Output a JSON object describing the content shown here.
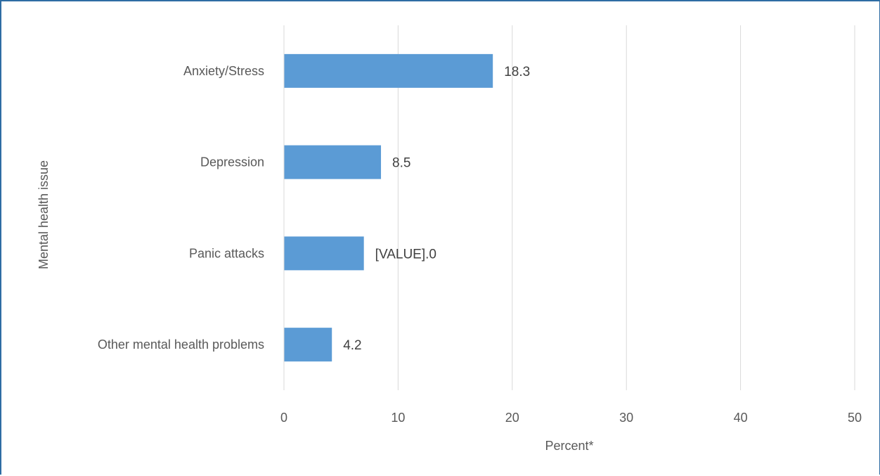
{
  "chart_data": {
    "type": "bar",
    "orientation": "horizontal",
    "categories": [
      "Anxiety/Stress",
      "Depression",
      "Panic attacks",
      "Other mental health problems"
    ],
    "values": [
      18.3,
      8.5,
      7.0,
      4.2
    ],
    "data_labels": [
      "18.3",
      "8.5",
      "[VALUE].0",
      "4.2"
    ],
    "xlabel": "Percent*",
    "ylabel": "Mental health issue",
    "xlim": [
      0,
      50
    ],
    "xticks": [
      "0",
      "10",
      "20",
      "30",
      "40",
      "50"
    ],
    "grid": "vertical",
    "bar_color": "#5b9bd5",
    "grid_color": "#d9d9d9"
  }
}
